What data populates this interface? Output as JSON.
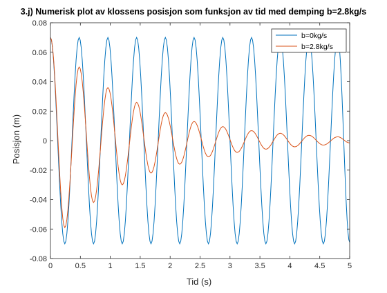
{
  "chart_data": {
    "type": "line",
    "title": "3.j) Numerisk plot av klossens posisjon som funksjon av tid med demping b=2.8kg/s",
    "xlabel": "Tid (s)",
    "ylabel": "Posisjon (m)",
    "xlim": [
      0,
      5
    ],
    "ylim": [
      -0.08,
      0.08
    ],
    "x_ticks": [
      "0",
      "0.5",
      "1",
      "1.5",
      "2",
      "2.5",
      "3",
      "3.5",
      "4",
      "4.5",
      "5"
    ],
    "y_ticks": [
      "-0.08",
      "-0.06",
      "-0.04",
      "-0.02",
      "0",
      "0.02",
      "0.04",
      "0.06",
      "0.08"
    ],
    "grid": false,
    "legend": "top-right",
    "series": [
      {
        "name": "b=0kg/s",
        "color": "#0072BD",
        "x": [
          0,
          0.24,
          0.48,
          0.72,
          0.96,
          1.2,
          1.44,
          1.68,
          1.92,
          2.16,
          2.4,
          2.64,
          2.88,
          3.12,
          3.36,
          3.6,
          3.84,
          4.08,
          4.32,
          4.56,
          4.8,
          5.0
        ],
        "y": [
          0.07,
          -0.07,
          0.07,
          -0.07,
          0.07,
          -0.07,
          0.07,
          -0.07,
          0.07,
          -0.07,
          0.07,
          -0.07,
          0.07,
          -0.07,
          0.07,
          -0.07,
          0.07,
          -0.07,
          0.07,
          -0.07,
          0.07,
          -0.069
        ]
      },
      {
        "name": "b=2.8kg/s",
        "color": "#D95319",
        "x": [
          0,
          0.24,
          0.48,
          0.72,
          0.96,
          1.2,
          1.44,
          1.68,
          1.92,
          2.16,
          2.4,
          2.64,
          2.88,
          3.12,
          3.36,
          3.6,
          3.84,
          4.08,
          4.32,
          4.56,
          4.8,
          5.0
        ],
        "y": [
          0.07,
          -0.059,
          0.05,
          -0.042,
          0.036,
          -0.03,
          0.026,
          -0.022,
          0.019,
          -0.016,
          0.013,
          -0.011,
          0.0095,
          -0.008,
          0.0068,
          -0.0058,
          0.005,
          -0.0042,
          0.0036,
          -0.003,
          0.0026,
          -0.0015
        ]
      }
    ]
  }
}
